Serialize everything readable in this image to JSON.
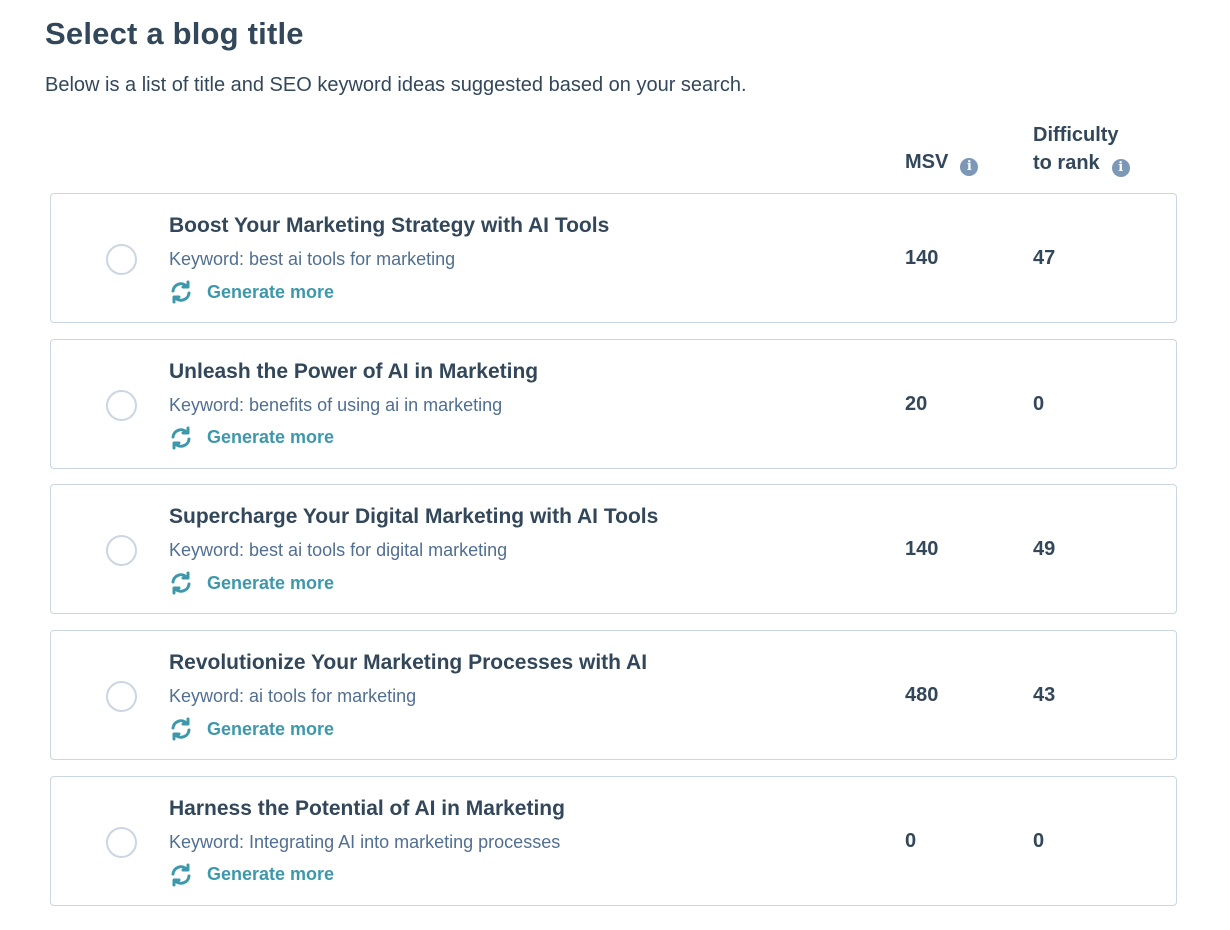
{
  "page": {
    "title": "Select a blog title",
    "subtitle": "Below is a list of title and SEO keyword ideas suggested based on your search."
  },
  "columns": {
    "msv": "MSV",
    "difficulty_line1": "Difficulty",
    "difficulty_line2": "to rank",
    "info_icon": "info-icon"
  },
  "generate_label": "Generate more",
  "items": [
    {
      "title": "Boost Your Marketing Strategy with AI Tools",
      "keyword": "Keyword: best ai tools for marketing",
      "msv": "140",
      "difficulty": "47"
    },
    {
      "title": "Unleash the Power of AI in Marketing",
      "keyword": "Keyword: benefits of using ai in marketing",
      "msv": "20",
      "difficulty": "0"
    },
    {
      "title": "Supercharge Your Digital Marketing with AI Tools",
      "keyword": "Keyword: best ai tools for digital marketing",
      "msv": "140",
      "difficulty": "49"
    },
    {
      "title": "Revolutionize Your Marketing Processes with AI",
      "keyword": "Keyword: ai tools for marketing",
      "msv": "480",
      "difficulty": "43"
    },
    {
      "title": "Harness the Potential of AI in Marketing",
      "keyword": "Keyword: Integrating AI into marketing processes",
      "msv": "0",
      "difficulty": "0"
    }
  ],
  "colors": {
    "text": "#33475b",
    "accent": "#3e98ac",
    "border": "#cbd6e2",
    "info": "#7c98b6"
  }
}
